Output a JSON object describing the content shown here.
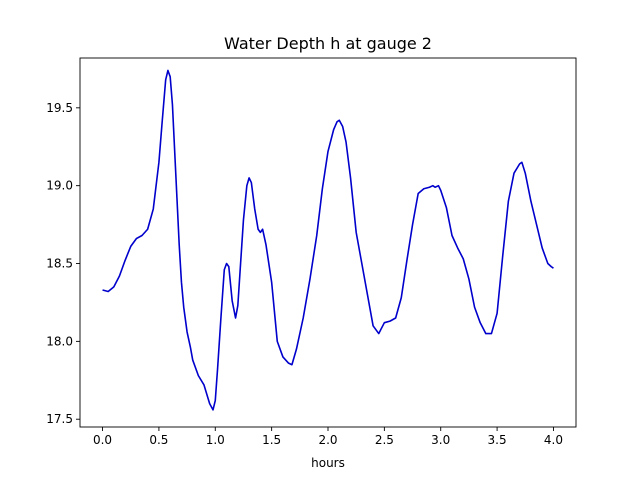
{
  "chart_data": {
    "type": "line",
    "title": "Water Depth h at gauge 2",
    "xlabel": "hours",
    "ylabel": "",
    "xlim": [
      -0.2,
      4.2
    ],
    "ylim": [
      17.45,
      19.82
    ],
    "xticks": [
      0.0,
      0.5,
      1.0,
      1.5,
      2.0,
      2.5,
      3.0,
      3.5,
      4.0
    ],
    "xtick_labels": [
      "0.0",
      "0.5",
      "1.0",
      "1.5",
      "2.0",
      "2.5",
      "3.0",
      "3.5",
      "4.0"
    ],
    "yticks": [
      17.5,
      18.0,
      18.5,
      19.0,
      19.5
    ],
    "ytick_labels": [
      "17.5",
      "18.0",
      "18.5",
      "19.0",
      "19.5"
    ],
    "grid": false,
    "line_color": "#0000cc",
    "series": [
      {
        "x": [
          0.0,
          0.05,
          0.1,
          0.15,
          0.2,
          0.25,
          0.3,
          0.35,
          0.4,
          0.45,
          0.5,
          0.53,
          0.56,
          0.58,
          0.6,
          0.62,
          0.64,
          0.66,
          0.68,
          0.7,
          0.72,
          0.75,
          0.78,
          0.8,
          0.85,
          0.9,
          0.95,
          0.98,
          1.0,
          1.02,
          1.05,
          1.08,
          1.1,
          1.12,
          1.15,
          1.18,
          1.2,
          1.22,
          1.25,
          1.28,
          1.3,
          1.32,
          1.35,
          1.38,
          1.4,
          1.42,
          1.45,
          1.5,
          1.55,
          1.6,
          1.65,
          1.68,
          1.72,
          1.78,
          1.84,
          1.9,
          1.95,
          2.0,
          2.05,
          2.08,
          2.1,
          2.13,
          2.16,
          2.2,
          2.25,
          2.3,
          2.35,
          2.4,
          2.45,
          2.5,
          2.55,
          2.6,
          2.65,
          2.7,
          2.75,
          2.8,
          2.85,
          2.9,
          2.93,
          2.95,
          2.98,
          3.0,
          3.05,
          3.1,
          3.15,
          3.2,
          3.25,
          3.3,
          3.35,
          3.4,
          3.45,
          3.5,
          3.55,
          3.6,
          3.65,
          3.7,
          3.72,
          3.75,
          3.8,
          3.85,
          3.9,
          3.95,
          3.98,
          4.0
        ],
        "y": [
          18.33,
          18.32,
          18.35,
          18.42,
          18.52,
          18.61,
          18.66,
          18.68,
          18.72,
          18.85,
          19.15,
          19.42,
          19.68,
          19.74,
          19.7,
          19.52,
          19.22,
          18.92,
          18.62,
          18.38,
          18.22,
          18.06,
          17.96,
          17.88,
          17.78,
          17.72,
          17.6,
          17.56,
          17.62,
          17.82,
          18.15,
          18.46,
          18.5,
          18.48,
          18.26,
          18.15,
          18.23,
          18.45,
          18.78,
          19.0,
          19.05,
          19.02,
          18.85,
          18.72,
          18.7,
          18.72,
          18.62,
          18.38,
          18.0,
          17.9,
          17.86,
          17.85,
          17.95,
          18.15,
          18.4,
          18.68,
          18.98,
          19.22,
          19.36,
          19.41,
          19.42,
          19.38,
          19.28,
          19.05,
          18.7,
          18.5,
          18.3,
          18.1,
          18.05,
          18.12,
          18.13,
          18.15,
          18.28,
          18.52,
          18.75,
          18.95,
          18.98,
          18.99,
          19.0,
          18.99,
          19.0,
          18.97,
          18.86,
          18.68,
          18.6,
          18.53,
          18.4,
          18.22,
          18.12,
          18.05,
          18.05,
          18.18,
          18.55,
          18.9,
          19.08,
          19.14,
          19.15,
          19.08,
          18.9,
          18.75,
          18.6,
          18.5,
          18.48,
          18.47
        ]
      }
    ]
  }
}
